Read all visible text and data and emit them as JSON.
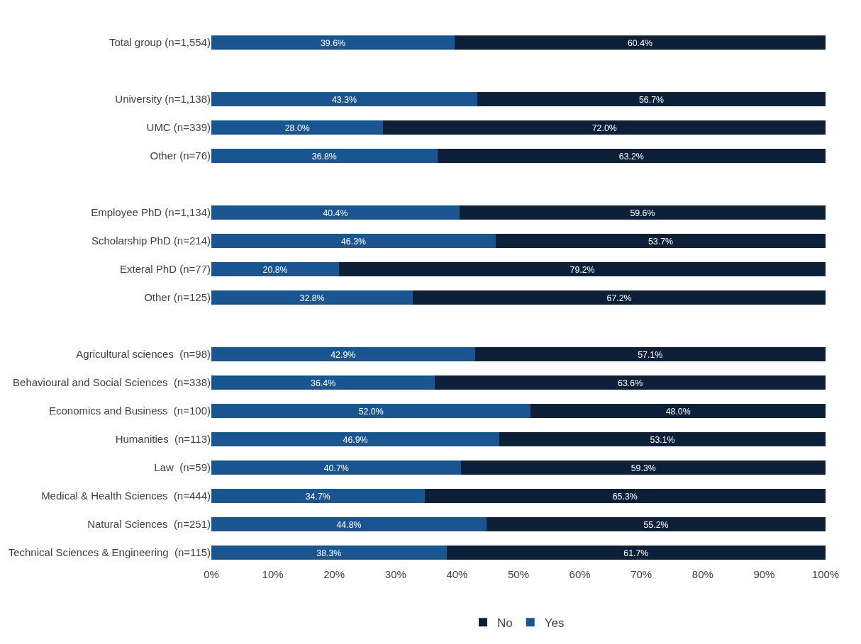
{
  "chart_data": {
    "type": "bar",
    "orientation": "horizontal",
    "stacked": true,
    "categories": [
      "Total group (n=1,554)",
      null,
      "University (n=1,138)",
      "UMC (n=339)",
      "Other (n=76)",
      null,
      "Employee PhD (n=1,134)",
      "Scholarship PhD (n=214)",
      "Exteral PhD (n=77)",
      "Other (n=125)",
      null,
      "Agricultural sciences  (n=98)",
      "Behavioural and Social Sciences  (n=338)",
      "Economics and Business  (n=100)",
      "Humanities  (n=113)",
      "Law  (n=59)",
      "Medical & Health Sciences  (n=444)",
      "Natural Sciences  (n=251)",
      "Technical Sciences & Engineering  (n=115)"
    ],
    "series": [
      {
        "name": "Yes",
        "color": "#1a5590",
        "values": [
          39.6,
          null,
          43.3,
          28.0,
          36.8,
          null,
          40.4,
          46.3,
          20.8,
          32.8,
          null,
          42.9,
          36.4,
          52.0,
          46.9,
          40.7,
          34.7,
          44.8,
          38.3
        ],
        "value_labels": [
          "39.6%",
          null,
          "43.3%",
          "28.0%",
          "36.8%",
          null,
          "40.4%",
          "46.3%",
          "20.8%",
          "32.8%",
          null,
          "42.9%",
          "36.4%",
          "52.0%",
          "46.9%",
          "40.7%",
          "34.7%",
          "44.8%",
          "38.3%"
        ]
      },
      {
        "name": "No",
        "color": "#0c2039",
        "values": [
          60.4,
          null,
          56.7,
          72.0,
          63.2,
          null,
          59.6,
          53.7,
          79.2,
          67.2,
          null,
          57.1,
          63.6,
          48.0,
          53.1,
          59.3,
          65.3,
          55.2,
          61.7
        ],
        "value_labels": [
          "60.4%",
          null,
          "56.7%",
          "72.0%",
          "63.2%",
          null,
          "59.6%",
          "53.7%",
          "79.2%",
          "67.2%",
          null,
          "57.1%",
          "63.6%",
          "48.0%",
          "53.1%",
          "59.3%",
          "65.3%",
          "55.2%",
          "61.7%"
        ]
      }
    ],
    "xlim": [
      0,
      100
    ],
    "xticks": [
      {
        "value": 0,
        "label": "0%"
      },
      {
        "value": 10,
        "label": "10%"
      },
      {
        "value": 20,
        "label": "20%"
      },
      {
        "value": 30,
        "label": "30%"
      },
      {
        "value": 40,
        "label": "40%"
      },
      {
        "value": 50,
        "label": "50%"
      },
      {
        "value": 60,
        "label": "60%"
      },
      {
        "value": 70,
        "label": "70%"
      },
      {
        "value": 80,
        "label": "80%"
      },
      {
        "value": 90,
        "label": "90%"
      },
      {
        "value": 100,
        "label": "100%"
      }
    ],
    "grid": false,
    "legend": "bottom"
  }
}
